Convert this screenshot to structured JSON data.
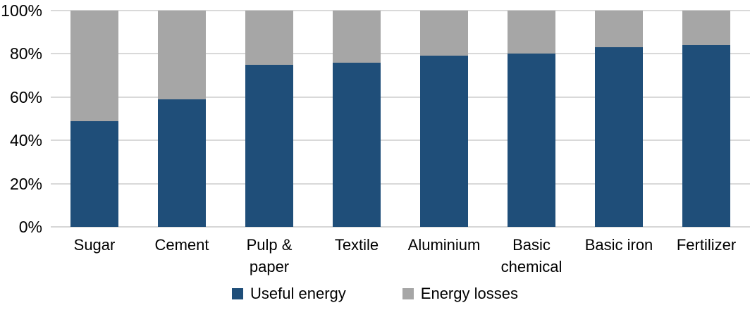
{
  "chart_data": {
    "type": "bar",
    "subtype": "stacked-100-percent",
    "title": "",
    "xlabel": "",
    "ylabel": "",
    "ylim": [
      0,
      100
    ],
    "grid": true,
    "legend_position": "bottom-center",
    "categories": [
      "Sugar",
      "Cement",
      "Pulp & paper",
      "Textile",
      "Aluminium",
      "Basic chemical",
      "Basic iron",
      "Fertilizer"
    ],
    "yticks_top_down": [
      "100%",
      "80%",
      "60%",
      "40%",
      "20%",
      "0%"
    ],
    "series": [
      {
        "name": "Useful energy",
        "color": "#1f4e79",
        "values": [
          49,
          59,
          75,
          76,
          79,
          80,
          83,
          84
        ]
      },
      {
        "name": "Energy losses",
        "color": "#a6a6a6",
        "values": [
          51,
          41,
          25,
          24,
          21,
          20,
          17,
          16
        ]
      }
    ],
    "colors": {
      "useful_energy": "#1f4e79",
      "energy_losses": "#a6a6a6",
      "gridline": "#d9d9d9",
      "text": "#000000",
      "background": "#ffffff"
    }
  }
}
